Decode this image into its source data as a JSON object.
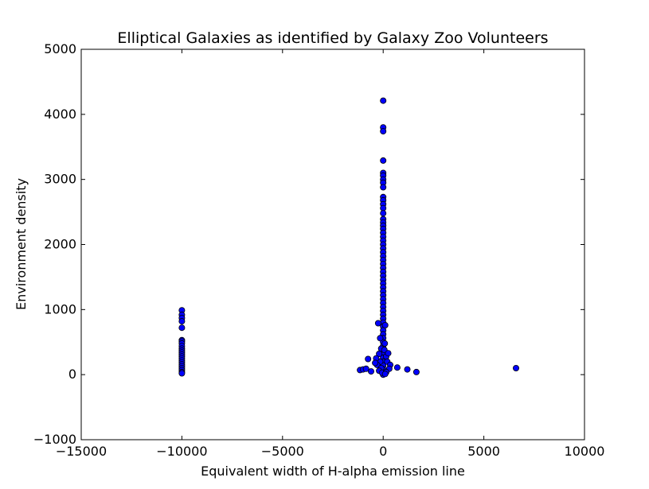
{
  "chart_data": {
    "type": "scatter",
    "title": "Elliptical Galaxies as identified by Galaxy Zoo Volunteers",
    "xlabel": "Equivalent width of H-alpha emission line",
    "ylabel": "Environment density",
    "xlim": [
      -15000,
      10000
    ],
    "ylim": [
      -1000,
      5000
    ],
    "xticks": [
      -15000,
      -10000,
      -5000,
      0,
      5000,
      10000
    ],
    "yticks": [
      -1000,
      0,
      1000,
      2000,
      3000,
      4000,
      5000
    ],
    "grid": false,
    "marker_color": "#0000ff",
    "marker_edge_color": "#000000",
    "points": [
      [
        -10000,
        990
      ],
      [
        -10000,
        920
      ],
      [
        -10000,
        870
      ],
      [
        -10000,
        820
      ],
      [
        -10000,
        720
      ],
      [
        -10000,
        530
      ],
      [
        -10000,
        510
      ],
      [
        -10000,
        480
      ],
      [
        -10000,
        440
      ],
      [
        -10000,
        400
      ],
      [
        -10000,
        370
      ],
      [
        -10000,
        340
      ],
      [
        -10000,
        310
      ],
      [
        -10000,
        280
      ],
      [
        -10000,
        250
      ],
      [
        -10000,
        220
      ],
      [
        -10000,
        190
      ],
      [
        -10000,
        160
      ],
      [
        -10000,
        130
      ],
      [
        -10000,
        100
      ],
      [
        -10000,
        70
      ],
      [
        -10000,
        40
      ],
      [
        -10000,
        20
      ],
      [
        0,
        4210
      ],
      [
        0,
        3800
      ],
      [
        0,
        3740
      ],
      [
        0,
        3290
      ],
      [
        0,
        3100
      ],
      [
        0,
        3060
      ],
      [
        0,
        3000
      ],
      [
        0,
        2950
      ],
      [
        0,
        2880
      ],
      [
        0,
        2730
      ],
      [
        0,
        2680
      ],
      [
        0,
        2620
      ],
      [
        0,
        2560
      ],
      [
        0,
        2480
      ],
      [
        0,
        2390
      ],
      [
        0,
        2340
      ],
      [
        0,
        2290
      ],
      [
        0,
        2240
      ],
      [
        0,
        2180
      ],
      [
        0,
        2120
      ],
      [
        0,
        2060
      ],
      [
        0,
        2000
      ],
      [
        0,
        1940
      ],
      [
        0,
        1880
      ],
      [
        0,
        1820
      ],
      [
        0,
        1760
      ],
      [
        0,
        1700
      ],
      [
        0,
        1640
      ],
      [
        0,
        1580
      ],
      [
        0,
        1520
      ],
      [
        0,
        1460
      ],
      [
        0,
        1400
      ],
      [
        0,
        1340
      ],
      [
        0,
        1280
      ],
      [
        0,
        1220
      ],
      [
        0,
        1160
      ],
      [
        0,
        1100
      ],
      [
        0,
        1040
      ],
      [
        0,
        980
      ],
      [
        0,
        920
      ],
      [
        0,
        860
      ],
      [
        0,
        800
      ],
      [
        0,
        740
      ],
      [
        0,
        680
      ],
      [
        0,
        620
      ],
      [
        0,
        560
      ],
      [
        0,
        500
      ],
      [
        0,
        440
      ],
      [
        0,
        380
      ],
      [
        0,
        320
      ],
      [
        0,
        260
      ],
      [
        0,
        200
      ],
      [
        0,
        140
      ],
      [
        0,
        80
      ],
      [
        0,
        30
      ],
      [
        0,
        0
      ],
      [
        -250,
        790
      ],
      [
        -150,
        560
      ],
      [
        -100,
        400
      ],
      [
        -200,
        320
      ],
      [
        -150,
        200
      ],
      [
        -300,
        150
      ],
      [
        -100,
        100
      ],
      [
        -200,
        60
      ],
      [
        -50,
        30
      ],
      [
        100,
        760
      ],
      [
        80,
        480
      ],
      [
        60,
        380
      ],
      [
        150,
        280
      ],
      [
        250,
        330
      ],
      [
        200,
        200
      ],
      [
        350,
        150
      ],
      [
        300,
        90
      ],
      [
        150,
        40
      ],
      [
        100,
        10
      ],
      [
        -350,
        250
      ],
      [
        -400,
        180
      ],
      [
        -1150,
        70
      ],
      [
        -1000,
        80
      ],
      [
        -850,
        90
      ],
      [
        -750,
        240
      ],
      [
        -600,
        50
      ],
      [
        700,
        110
      ],
      [
        1200,
        80
      ],
      [
        1650,
        40
      ],
      [
        6600,
        100
      ]
    ]
  }
}
